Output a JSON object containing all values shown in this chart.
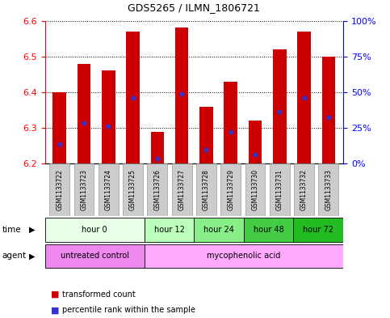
{
  "title": "GDS5265 / ILMN_1806721",
  "samples": [
    "GSM1133722",
    "GSM1133723",
    "GSM1133724",
    "GSM1133725",
    "GSM1133726",
    "GSM1133727",
    "GSM1133728",
    "GSM1133729",
    "GSM1133730",
    "GSM1133731",
    "GSM1133732",
    "GSM1133733"
  ],
  "bar_tops": [
    6.4,
    6.48,
    6.46,
    6.57,
    6.29,
    6.58,
    6.36,
    6.43,
    6.32,
    6.52,
    6.57,
    6.5
  ],
  "bar_bottom": 6.2,
  "blue_dots": [
    6.255,
    6.315,
    6.305,
    6.385,
    6.215,
    6.395,
    6.24,
    6.29,
    6.225,
    6.345,
    6.385,
    6.33
  ],
  "ylim": [
    6.2,
    6.6
  ],
  "y2ticks_labels": [
    "0%",
    "25%",
    "50%",
    "75%",
    "100%"
  ],
  "y2ticks_vals": [
    6.2,
    6.3,
    6.4,
    6.5,
    6.6
  ],
  "bar_color": "#cc0000",
  "blue_color": "#3333cc",
  "time_groups": [
    {
      "label": "hour 0",
      "start": 0,
      "end": 4,
      "color": "#e8ffe8"
    },
    {
      "label": "hour 12",
      "start": 4,
      "end": 6,
      "color": "#bbffbb"
    },
    {
      "label": "hour 24",
      "start": 6,
      "end": 8,
      "color": "#88ee88"
    },
    {
      "label": "hour 48",
      "start": 8,
      "end": 10,
      "color": "#44cc44"
    },
    {
      "label": "hour 72",
      "start": 10,
      "end": 12,
      "color": "#22bb22"
    }
  ],
  "agent_groups": [
    {
      "label": "untreated control",
      "start": 0,
      "end": 4,
      "color": "#ee88ee"
    },
    {
      "label": "mycophenolic acid",
      "start": 4,
      "end": 12,
      "color": "#ffaaff"
    }
  ],
  "sample_bg": "#cccccc",
  "fig_width": 4.83,
  "fig_height": 3.93,
  "dpi": 100
}
